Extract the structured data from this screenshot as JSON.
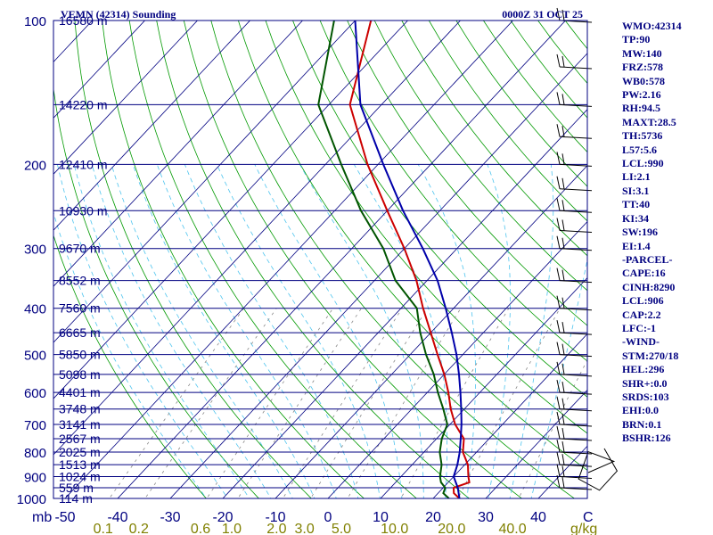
{
  "title": "VEMN (42314) Sounding",
  "datetime": "0000Z 31 OCT 25",
  "chart_data": {
    "type": "skew-t",
    "title": "VEMN (42314) Sounding",
    "pressure_axis": {
      "unit": "mb",
      "label": "mb",
      "range": [
        1000,
        100
      ],
      "ticks": [
        100,
        200,
        300,
        400,
        500,
        600,
        700,
        800,
        900,
        1000
      ]
    },
    "height_labels": [
      {
        "p": 100,
        "label": "16580 m"
      },
      {
        "p": 150,
        "label": "14220 m"
      },
      {
        "p": 200,
        "label": "12410 m"
      },
      {
        "p": 250,
        "label": "10930 m"
      },
      {
        "p": 300,
        "label": "9670 m"
      },
      {
        "p": 350,
        "label": "8552 m"
      },
      {
        "p": 400,
        "label": "7560 m"
      },
      {
        "p": 450,
        "label": "6665 m"
      },
      {
        "p": 500,
        "label": "5850 m"
      },
      {
        "p": 550,
        "label": "5098 m"
      },
      {
        "p": 600,
        "label": "4401 m"
      },
      {
        "p": 650,
        "label": "3748 m"
      },
      {
        "p": 700,
        "label": "3141 m"
      },
      {
        "p": 750,
        "label": "2567 m"
      },
      {
        "p": 800,
        "label": "2025 m"
      },
      {
        "p": 850,
        "label": "1513 m"
      },
      {
        "p": 900,
        "label": "1024 m"
      },
      {
        "p": 950,
        "label": "559 m"
      },
      {
        "p": 1000,
        "label": "114 m"
      }
    ],
    "temperature_axis": {
      "unit": "C",
      "label": "C",
      "ticks": [
        -50,
        -40,
        -30,
        -20,
        -10,
        0,
        10,
        20,
        30,
        40
      ]
    },
    "mixing_ratio_axis": {
      "unit": "g/kg",
      "label": "g/kg",
      "ticks": [
        "0.1",
        "0.2",
        "0.6",
        "1.0",
        "2.0",
        "3.0",
        "5.0",
        "10.0",
        "20.0",
        "40.0"
      ]
    },
    "series": [
      {
        "name": "temperature",
        "color": "#cc0000",
        "points": [
          [
            1000,
            25
          ],
          [
            975,
            23
          ],
          [
            950,
            22
          ],
          [
            925,
            24
          ],
          [
            900,
            22.8
          ],
          [
            850,
            20.6
          ],
          [
            800,
            17.4
          ],
          [
            750,
            15.2
          ],
          [
            700,
            11
          ],
          [
            650,
            7.4
          ],
          [
            600,
            4
          ],
          [
            550,
            0
          ],
          [
            500,
            -4.8
          ],
          [
            450,
            -10
          ],
          [
            400,
            -15.8
          ],
          [
            350,
            -22
          ],
          [
            300,
            -30
          ],
          [
            250,
            -40
          ],
          [
            200,
            -52
          ],
          [
            150,
            -66
          ],
          [
            100,
            -77
          ]
        ]
      },
      {
        "name": "dewpoint",
        "color": "#005500",
        "points": [
          [
            1000,
            23
          ],
          [
            975,
            21
          ],
          [
            950,
            20.4
          ],
          [
            925,
            18.6
          ],
          [
            900,
            17.4
          ],
          [
            850,
            15.6
          ],
          [
            800,
            13
          ],
          [
            750,
            11
          ],
          [
            700,
            9.5
          ],
          [
            650,
            6
          ],
          [
            600,
            2
          ],
          [
            550,
            -2
          ],
          [
            500,
            -7
          ],
          [
            450,
            -12
          ],
          [
            400,
            -17
          ],
          [
            350,
            -26
          ],
          [
            300,
            -34
          ],
          [
            250,
            -45
          ],
          [
            200,
            -57
          ],
          [
            150,
            -72
          ],
          [
            100,
            -84
          ]
        ]
      },
      {
        "name": "parcel",
        "color": "#0000aa",
        "points": [
          [
            1000,
            25
          ],
          [
            950,
            22.8
          ],
          [
            900,
            20
          ],
          [
            850,
            18.6
          ],
          [
            800,
            16.8
          ],
          [
            750,
            14.6
          ],
          [
            700,
            12.2
          ],
          [
            650,
            9.4
          ],
          [
            600,
            6.3
          ],
          [
            550,
            2.8
          ],
          [
            500,
            -1.2
          ],
          [
            450,
            -6
          ],
          [
            400,
            -11.5
          ],
          [
            350,
            -18
          ],
          [
            300,
            -26.5
          ],
          [
            250,
            -37
          ],
          [
            200,
            -49
          ],
          [
            150,
            -64
          ],
          [
            100,
            -80
          ]
        ]
      }
    ],
    "wind_barbs": [
      {
        "p": 100
      },
      {
        "p": 125
      },
      {
        "p": 150
      },
      {
        "p": 175
      },
      {
        "p": 200
      },
      {
        "p": 225
      },
      {
        "p": 250
      },
      {
        "p": 275
      },
      {
        "p": 300
      },
      {
        "p": 350
      },
      {
        "p": 400
      },
      {
        "p": 450
      },
      {
        "p": 500
      },
      {
        "p": 550
      },
      {
        "p": 600
      },
      {
        "p": 650
      },
      {
        "p": 700
      },
      {
        "p": 750
      },
      {
        "p": 800
      },
      {
        "p": 850
      },
      {
        "p": 900
      },
      {
        "p": 950
      }
    ],
    "colors": {
      "isobar": "#000080",
      "isotherm": "#000080",
      "dry_adiabat": "#009900",
      "moist_adiabat": "#4dc4ee",
      "mixing_ratio": "#888888",
      "labels": "#000080",
      "mixing_labels": "#808000",
      "hodograph": "#000000"
    }
  },
  "stats": [
    "WMO:42314",
    "TP:90",
    "MW:140",
    "FRZ:578",
    "WB0:578",
    "PW:2.16",
    "RH:94.5",
    "MAXT:28.5",
    "TH:5736",
    "L57:5.6",
    "LCL:990",
    "LI:2.1",
    "SI:3.1",
    "TT:40",
    "KI:34",
    "SW:196",
    "EI:1.4",
    "-PARCEL-",
    "CAPE:16",
    "CINH:8290",
    "LCL:906",
    "CAP:2.2",
    "LFC:-1",
    "-WIND-",
    "STM:270/18",
    "HEL:296",
    "SHR+:0.0",
    "SRDS:103",
    "EHI:0.0",
    "BRN:0.1",
    "BSHR:126"
  ]
}
